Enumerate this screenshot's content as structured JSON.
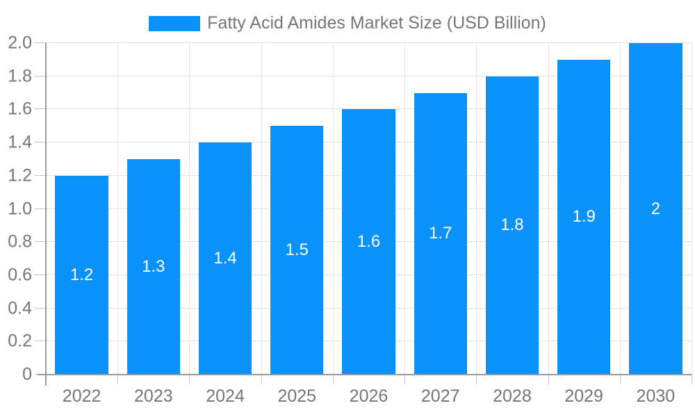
{
  "chart_data": {
    "type": "bar",
    "title": "Fatty Acid Amides Market Size (USD Billion)",
    "categories": [
      "2022",
      "2023",
      "2024",
      "2025",
      "2026",
      "2027",
      "2028",
      "2029",
      "2030"
    ],
    "values": [
      1.2,
      1.3,
      1.4,
      1.5,
      1.6,
      1.7,
      1.8,
      1.9,
      2.0
    ],
    "value_labels": [
      "1.2",
      "1.3",
      "1.4",
      "1.5",
      "1.6",
      "1.7",
      "1.8",
      "1.9",
      "2"
    ],
    "xlabel": "",
    "ylabel": "",
    "ylim": [
      0,
      2.0
    ],
    "yticks": [
      0,
      0.2,
      0.4,
      0.6,
      0.8,
      1.0,
      1.2,
      1.4,
      1.6,
      1.8,
      2.0
    ],
    "ytick_labels": [
      "0",
      "0.2",
      "0.4",
      "0.6",
      "0.8",
      "1.0",
      "1.2",
      "1.4",
      "1.6",
      "1.8",
      "2.0"
    ],
    "grid": true,
    "legend_position": "top"
  },
  "colors": {
    "bar": "#0892fa",
    "axis": "#999999",
    "grid": "#e4e4e4",
    "tick": "#c4c4c4",
    "tick_label": "#757575",
    "value_label": "#ffffff",
    "legend_text": "#757575",
    "background": "#ffffff"
  }
}
